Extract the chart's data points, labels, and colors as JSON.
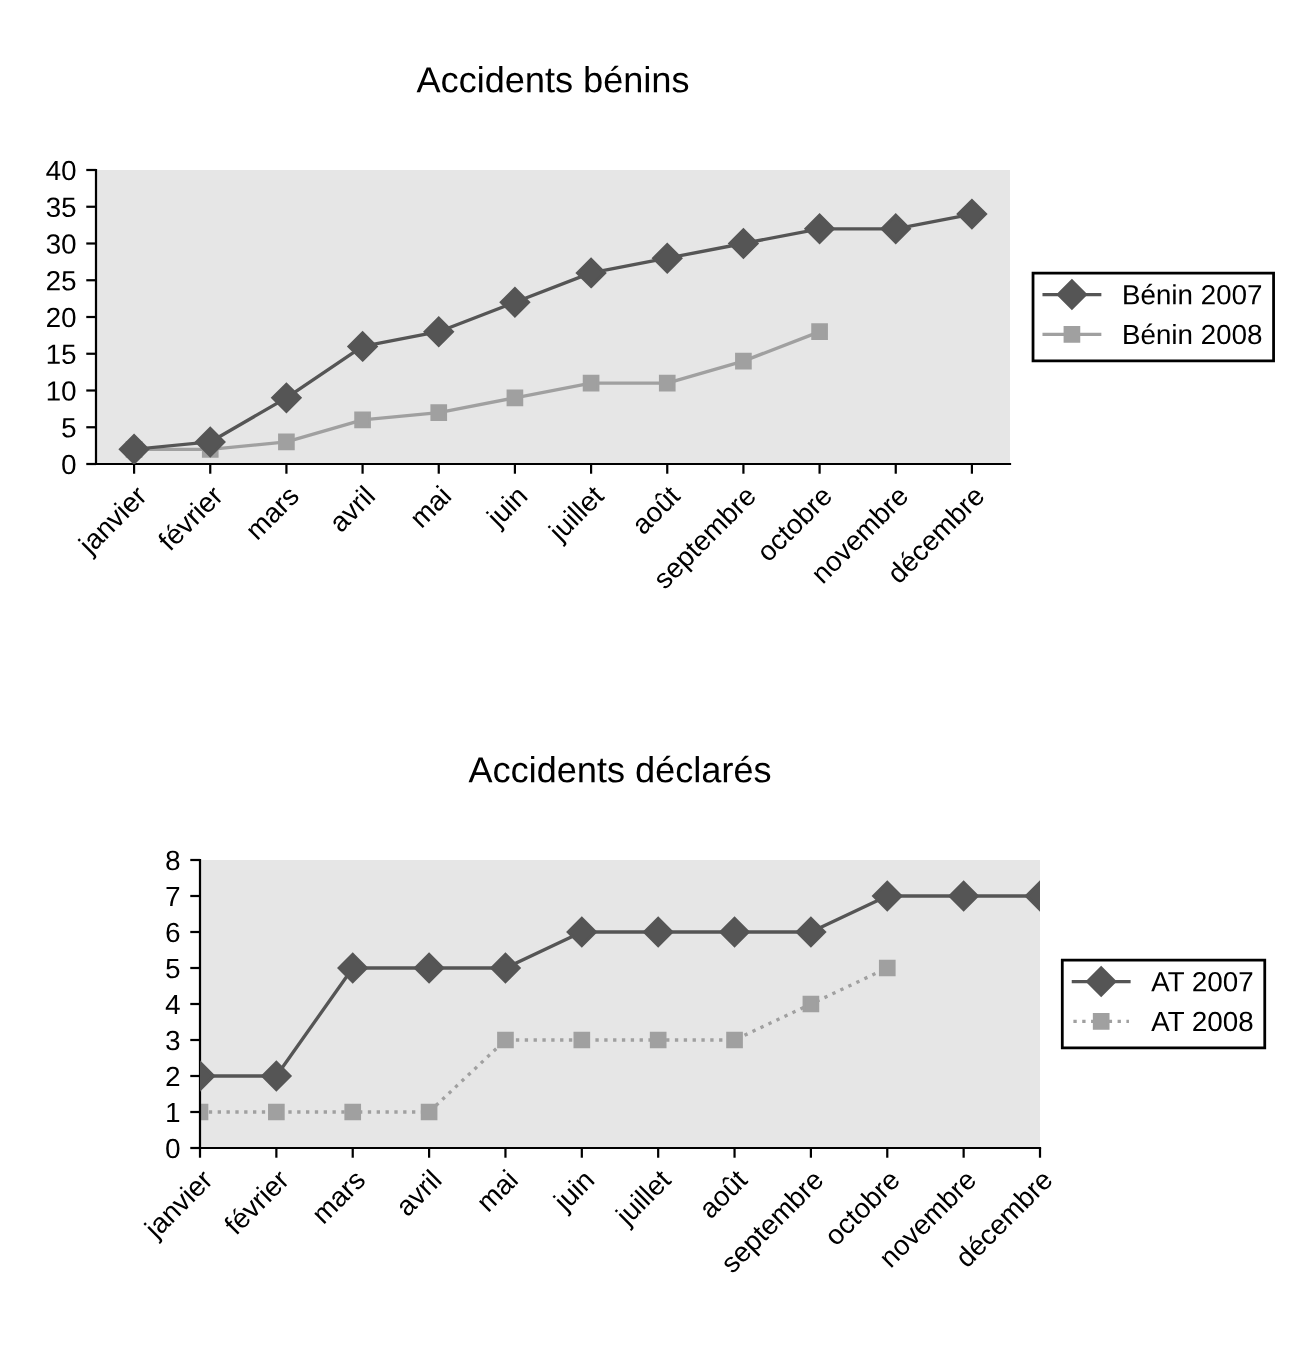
{
  "chart_data": [
    {
      "type": "line",
      "title": "Accidents bénins",
      "categories": [
        "janvier",
        "février",
        "mars",
        "avril",
        "mai",
        "juin",
        "juillet",
        "août",
        "septembre",
        "octobre",
        "novembre",
        "décembre"
      ],
      "series": [
        {
          "name": "Bénin 2007",
          "color": "#555555",
          "marker": "diamond",
          "line_style": "solid",
          "values": [
            2,
            3,
            9,
            16,
            18,
            22,
            26,
            28,
            30,
            32,
            32,
            34
          ]
        },
        {
          "name": "Bénin 2008",
          "color": "#a0a0a0",
          "marker": "square",
          "line_style": "solid",
          "values": [
            2,
            2,
            3,
            6,
            7,
            9,
            11,
            11,
            14,
            18,
            null,
            null
          ]
        }
      ],
      "ylim": [
        0,
        40
      ],
      "yticks": [
        0,
        5,
        10,
        15,
        20,
        25,
        30,
        35,
        40
      ],
      "grid": false,
      "legend": "right"
    },
    {
      "type": "line",
      "title": "Accidents déclarés",
      "categories": [
        "janvier",
        "février",
        "mars",
        "avril",
        "mai",
        "juin",
        "juillet",
        "août",
        "septembre",
        "octobre",
        "novembre",
        "décembre"
      ],
      "series": [
        {
          "name": "AT 2007",
          "color": "#555555",
          "marker": "diamond",
          "line_style": "solid",
          "values": [
            2,
            2,
            5,
            5,
            5,
            6,
            6,
            6,
            6,
            7,
            7,
            7
          ]
        },
        {
          "name": "AT 2008",
          "color": "#a0a0a0",
          "marker": "square",
          "line_style": "dotted",
          "values": [
            1,
            1,
            1,
            1,
            3,
            3,
            3,
            3,
            4,
            5,
            null,
            null
          ]
        }
      ],
      "ylim": [
        0,
        8
      ],
      "yticks": [
        0,
        1,
        2,
        3,
        4,
        5,
        6,
        7,
        8
      ],
      "grid": false,
      "legend": "right"
    }
  ]
}
